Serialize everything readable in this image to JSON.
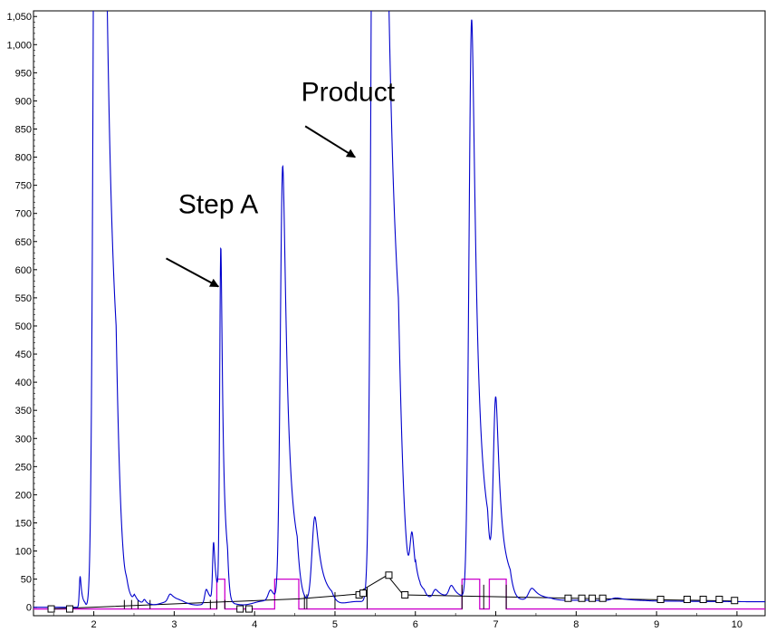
{
  "chart_data": {
    "type": "line",
    "title": "",
    "xlabel": "",
    "ylabel": "",
    "xlim": [
      1.25,
      10.35
    ],
    "ylim": [
      -15,
      1060
    ],
    "x_ticks": [
      {
        "value": 2,
        "label": "2"
      },
      {
        "value": 3,
        "label": "3"
      },
      {
        "value": 4,
        "label": "4"
      },
      {
        "value": 5,
        "label": "5"
      },
      {
        "value": 6,
        "label": "6"
      },
      {
        "value": 7,
        "label": "7"
      },
      {
        "value": 8,
        "label": "8"
      },
      {
        "value": 9,
        "label": "9"
      },
      {
        "value": 10,
        "label": "10"
      }
    ],
    "y_ticks": [
      {
        "value": 0,
        "label": "0"
      },
      {
        "value": 50,
        "label": "50"
      },
      {
        "value": 100,
        "label": "100"
      },
      {
        "value": 150,
        "label": "150"
      },
      {
        "value": 200,
        "label": "200"
      },
      {
        "value": 250,
        "label": "250"
      },
      {
        "value": 300,
        "label": "300"
      },
      {
        "value": 350,
        "label": "350"
      },
      {
        "value": 400,
        "label": "400"
      },
      {
        "value": 450,
        "label": "450"
      },
      {
        "value": 500,
        "label": "500"
      },
      {
        "value": 550,
        "label": "550"
      },
      {
        "value": 600,
        "label": "600"
      },
      {
        "value": 650,
        "label": "650"
      },
      {
        "value": 700,
        "label": "700"
      },
      {
        "value": 750,
        "label": "750"
      },
      {
        "value": 800,
        "label": "800"
      },
      {
        "value": 850,
        "label": "850"
      },
      {
        "value": 900,
        "label": "900"
      },
      {
        "value": 950,
        "label": "950"
      },
      {
        "value": 1000,
        "label": "1,000"
      },
      {
        "value": 1050,
        "label": "1,050"
      }
    ],
    "colors": {
      "signal": "#0000cc",
      "events": "#cc00cc",
      "baseline": "#000000"
    },
    "baseline_x": 1.25,
    "peaks": [
      {
        "x": 1.83,
        "h": 55,
        "w": 0.01
      },
      {
        "x": 2.05,
        "h": 3200,
        "w": 0.038
      },
      {
        "x": 2.41,
        "h": 10,
        "w": 0.015
      },
      {
        "x": 2.51,
        "h": 10,
        "w": 0.015
      },
      {
        "x": 2.63,
        "h": 8,
        "w": 0.015
      },
      {
        "x": 2.95,
        "h": 12,
        "w": 0.025
      },
      {
        "x": 3.4,
        "h": 25,
        "w": 0.02
      },
      {
        "x": 3.49,
        "h": 100,
        "w": 0.012
      },
      {
        "x": 3.58,
        "h": 625,
        "w": 0.014
      },
      {
        "x": 4.2,
        "h": 20,
        "w": 0.03
      },
      {
        "x": 4.35,
        "h": 775,
        "w": 0.03
      },
      {
        "x": 4.75,
        "h": 150,
        "w": 0.035
      },
      {
        "x": 5.52,
        "h": 3500,
        "w": 0.045
      },
      {
        "x": 5.96,
        "h": 100,
        "w": 0.025
      },
      {
        "x": 6.25,
        "h": 15,
        "w": 0.03
      },
      {
        "x": 6.45,
        "h": 20,
        "w": 0.03
      },
      {
        "x": 6.7,
        "h": 1030,
        "w": 0.033
      },
      {
        "x": 7.0,
        "h": 345,
        "w": 0.03
      },
      {
        "x": 7.45,
        "h": 20,
        "w": 0.04
      },
      {
        "x": 8.5,
        "h": 5,
        "w": 0.06
      }
    ],
    "event_trace": [
      [
        1.25,
        -3
      ],
      [
        3.53,
        -3
      ],
      [
        3.53,
        50
      ],
      [
        3.63,
        50
      ],
      [
        3.63,
        -3
      ],
      [
        4.25,
        -3
      ],
      [
        4.25,
        50
      ],
      [
        4.55,
        50
      ],
      [
        4.55,
        -3
      ],
      [
        6.58,
        -3
      ],
      [
        6.58,
        50
      ],
      [
        6.8,
        50
      ],
      [
        6.8,
        -3
      ],
      [
        6.92,
        -3
      ],
      [
        6.92,
        50
      ],
      [
        7.13,
        50
      ],
      [
        7.13,
        -3
      ],
      [
        10.35,
        -3
      ]
    ],
    "baseline_segments": [
      [
        [
          1.47,
          -3
        ],
        [
          4.55,
          15
        ],
        [
          5.25,
          23
        ],
        [
          5.65,
          57
        ],
        [
          5.85,
          22
        ],
        [
          8.0,
          16
        ],
        [
          10.0,
          11
        ]
      ]
    ],
    "markers": [
      [
        1.47,
        -3
      ],
      [
        1.7,
        -3
      ],
      [
        3.82,
        -3
      ],
      [
        3.93,
        -3
      ],
      [
        5.3,
        22
      ],
      [
        5.35,
        25
      ],
      [
        5.67,
        57
      ],
      [
        5.87,
        22
      ],
      [
        7.9,
        16
      ],
      [
        8.07,
        16
      ],
      [
        8.2,
        16
      ],
      [
        8.33,
        16
      ],
      [
        9.05,
        14
      ],
      [
        9.38,
        14
      ],
      [
        9.58,
        14
      ],
      [
        9.78,
        14
      ],
      [
        9.97,
        12
      ]
    ],
    "drops": [
      [
        2.38,
        3
      ],
      [
        2.47,
        3
      ],
      [
        2.55,
        3
      ],
      [
        2.7,
        3
      ],
      [
        3.45,
        3
      ],
      [
        3.53,
        3
      ],
      [
        3.63,
        3
      ],
      [
        4.62,
        12
      ],
      [
        4.65,
        13
      ],
      [
        5.0,
        17
      ],
      [
        5.4,
        25
      ],
      [
        6.58,
        30
      ],
      [
        6.85,
        30
      ],
      [
        7.13,
        30
      ]
    ],
    "annotations": [
      {
        "text": "Step A",
        "x": 3.05,
        "y": 700,
        "arrow_from": [
          2.9,
          620
        ],
        "arrow_to": [
          3.55,
          570
        ]
      },
      {
        "text": "Product",
        "x": 4.58,
        "y": 900,
        "arrow_from": [
          4.63,
          855
        ],
        "arrow_to": [
          5.25,
          800
        ]
      }
    ]
  }
}
